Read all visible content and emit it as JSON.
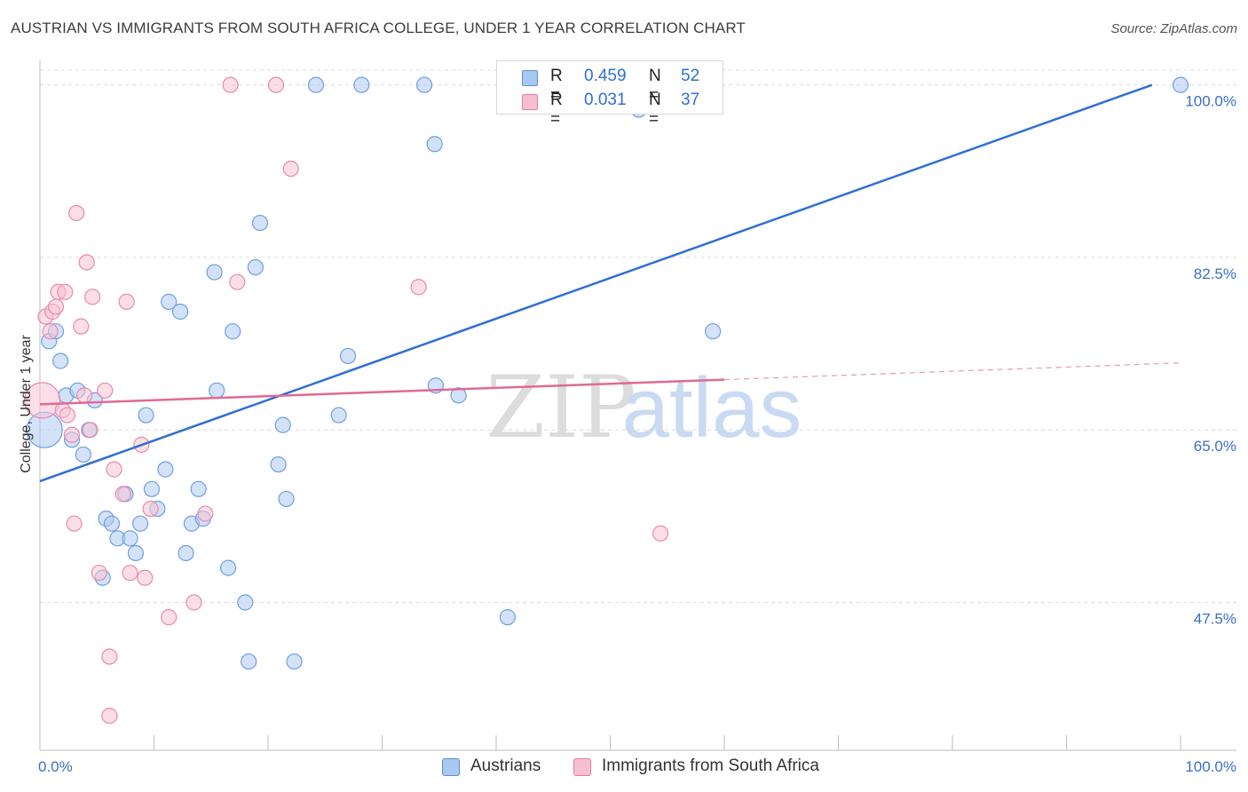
{
  "header": {
    "title": "AUSTRIAN VS IMMIGRANTS FROM SOUTH AFRICA COLLEGE, UNDER 1 YEAR CORRELATION CHART",
    "source": "Source: ZipAtlas.com"
  },
  "watermark": {
    "zip": "ZIP",
    "atlas": "atlas"
  },
  "legend": {
    "r_label": "R =",
    "n_label": "N =",
    "series": [
      {
        "name": "Austrians",
        "r": "0.459",
        "n": "52",
        "fill": "#a9c8f0",
        "stroke": "#5b8fd6"
      },
      {
        "name": "Immigrants from South Africa",
        "r": "0.031",
        "n": "37",
        "fill": "#f7bfd2",
        "stroke": "#e47ba0"
      }
    ]
  },
  "colors": {
    "blue_point_fill": "#aecbf2",
    "blue_point_stroke": "#6f9fe0",
    "pink_point_fill": "#f7c2d4",
    "pink_point_stroke": "#e88aab",
    "blue_line": "#2f6fd4",
    "pink_line": "#e06a93",
    "grid": "#dcdcdc",
    "axis_text": "#3a6fc9"
  },
  "chart_data": {
    "type": "scatter",
    "title": "AUSTRIAN VS IMMIGRANTS FROM SOUTH AFRICA COLLEGE, UNDER 1 YEAR CORRELATION CHART",
    "xlabel": "",
    "ylabel": "College, Under 1 year",
    "xlim": [
      0,
      100
    ],
    "ylim": [
      32.5,
      101.5
    ],
    "x_tick_labels": [
      "0.0%",
      "100.0%"
    ],
    "y_ticks": [
      47.5,
      65.0,
      82.5,
      100.0
    ],
    "y_tick_labels": [
      "47.5%",
      "65.0%",
      "82.5%",
      "100.0%"
    ],
    "grid": true,
    "series": [
      {
        "name": "Austrians",
        "points": [
          {
            "x": 0.4,
            "y": 65.0,
            "big": true
          },
          {
            "x": 0.8,
            "y": 74.0
          },
          {
            "x": 1.4,
            "y": 75.0
          },
          {
            "x": 1.8,
            "y": 72.0
          },
          {
            "x": 2.3,
            "y": 68.5
          },
          {
            "x": 2.8,
            "y": 64.0
          },
          {
            "x": 3.3,
            "y": 69.0
          },
          {
            "x": 3.8,
            "y": 62.5
          },
          {
            "x": 4.3,
            "y": 65.0
          },
          {
            "x": 4.8,
            "y": 68.0
          },
          {
            "x": 5.5,
            "y": 50.0
          },
          {
            "x": 5.8,
            "y": 56.0
          },
          {
            "x": 6.3,
            "y": 55.5
          },
          {
            "x": 6.8,
            "y": 54.0
          },
          {
            "x": 7.5,
            "y": 58.5
          },
          {
            "x": 7.9,
            "y": 54.0
          },
          {
            "x": 8.4,
            "y": 52.5
          },
          {
            "x": 8.8,
            "y": 55.5
          },
          {
            "x": 9.3,
            "y": 66.5
          },
          {
            "x": 9.8,
            "y": 59.0
          },
          {
            "x": 10.3,
            "y": 57.0
          },
          {
            "x": 11.0,
            "y": 61.0
          },
          {
            "x": 11.3,
            "y": 78.0
          },
          {
            "x": 12.3,
            "y": 77.0
          },
          {
            "x": 12.8,
            "y": 52.5
          },
          {
            "x": 13.3,
            "y": 55.5
          },
          {
            "x": 13.9,
            "y": 59.0
          },
          {
            "x": 14.3,
            "y": 56.0
          },
          {
            "x": 15.3,
            "y": 81.0
          },
          {
            "x": 15.5,
            "y": 69.0
          },
          {
            "x": 16.5,
            "y": 51.0
          },
          {
            "x": 16.9,
            "y": 75.0
          },
          {
            "x": 18.0,
            "y": 47.5
          },
          {
            "x": 18.3,
            "y": 41.5
          },
          {
            "x": 18.9,
            "y": 81.5
          },
          {
            "x": 19.3,
            "y": 86.0
          },
          {
            "x": 20.9,
            "y": 61.5
          },
          {
            "x": 21.3,
            "y": 65.5
          },
          {
            "x": 21.6,
            "y": 58.0
          },
          {
            "x": 22.3,
            "y": 41.5
          },
          {
            "x": 24.2,
            "y": 100.0
          },
          {
            "x": 26.2,
            "y": 66.5
          },
          {
            "x": 27.0,
            "y": 72.5
          },
          {
            "x": 28.2,
            "y": 100.0
          },
          {
            "x": 33.7,
            "y": 100.0
          },
          {
            "x": 34.6,
            "y": 94.0
          },
          {
            "x": 34.7,
            "y": 69.5
          },
          {
            "x": 36.7,
            "y": 68.5
          },
          {
            "x": 41.0,
            "y": 46.0
          },
          {
            "x": 52.5,
            "y": 97.5
          },
          {
            "x": 59.0,
            "y": 75.0
          },
          {
            "x": 100.0,
            "y": 100.0
          }
        ],
        "trend": {
          "x": [
            0,
            97.5
          ],
          "y": [
            59.8,
            100.0
          ]
        }
      },
      {
        "name": "Immigrants from South Africa",
        "points": [
          {
            "x": 0.2,
            "y": 68.0,
            "big": true
          },
          {
            "x": 0.5,
            "y": 76.5
          },
          {
            "x": 0.9,
            "y": 75.0
          },
          {
            "x": 1.1,
            "y": 77.0
          },
          {
            "x": 1.4,
            "y": 77.5
          },
          {
            "x": 1.6,
            "y": 79.0
          },
          {
            "x": 2.0,
            "y": 67.0
          },
          {
            "x": 2.2,
            "y": 79.0
          },
          {
            "x": 2.4,
            "y": 66.5
          },
          {
            "x": 2.8,
            "y": 64.5
          },
          {
            "x": 3.0,
            "y": 55.5
          },
          {
            "x": 3.2,
            "y": 87.0
          },
          {
            "x": 3.6,
            "y": 75.5
          },
          {
            "x": 3.9,
            "y": 68.5
          },
          {
            "x": 4.1,
            "y": 82.0
          },
          {
            "x": 4.4,
            "y": 65.0
          },
          {
            "x": 4.6,
            "y": 78.5
          },
          {
            "x": 5.2,
            "y": 50.5
          },
          {
            "x": 5.7,
            "y": 69.0
          },
          {
            "x": 6.1,
            "y": 42.0
          },
          {
            "x": 6.1,
            "y": 36.0
          },
          {
            "x": 6.5,
            "y": 61.0
          },
          {
            "x": 7.3,
            "y": 58.5
          },
          {
            "x": 7.6,
            "y": 78.0
          },
          {
            "x": 7.9,
            "y": 50.5
          },
          {
            "x": 8.9,
            "y": 63.5
          },
          {
            "x": 9.2,
            "y": 50.0
          },
          {
            "x": 9.7,
            "y": 57.0
          },
          {
            "x": 11.3,
            "y": 46.0
          },
          {
            "x": 13.5,
            "y": 47.5
          },
          {
            "x": 14.5,
            "y": 56.5
          },
          {
            "x": 16.7,
            "y": 100.0
          },
          {
            "x": 17.3,
            "y": 80.0
          },
          {
            "x": 20.7,
            "y": 100.0
          },
          {
            "x": 22.0,
            "y": 91.5
          },
          {
            "x": 33.2,
            "y": 79.5
          },
          {
            "x": 54.4,
            "y": 54.5
          }
        ],
        "trend": {
          "x": [
            0,
            60
          ],
          "y": [
            67.6,
            70.1
          ]
        },
        "trend_dashed": {
          "x": [
            60,
            100
          ],
          "y": [
            70.1,
            71.8
          ]
        }
      }
    ]
  }
}
